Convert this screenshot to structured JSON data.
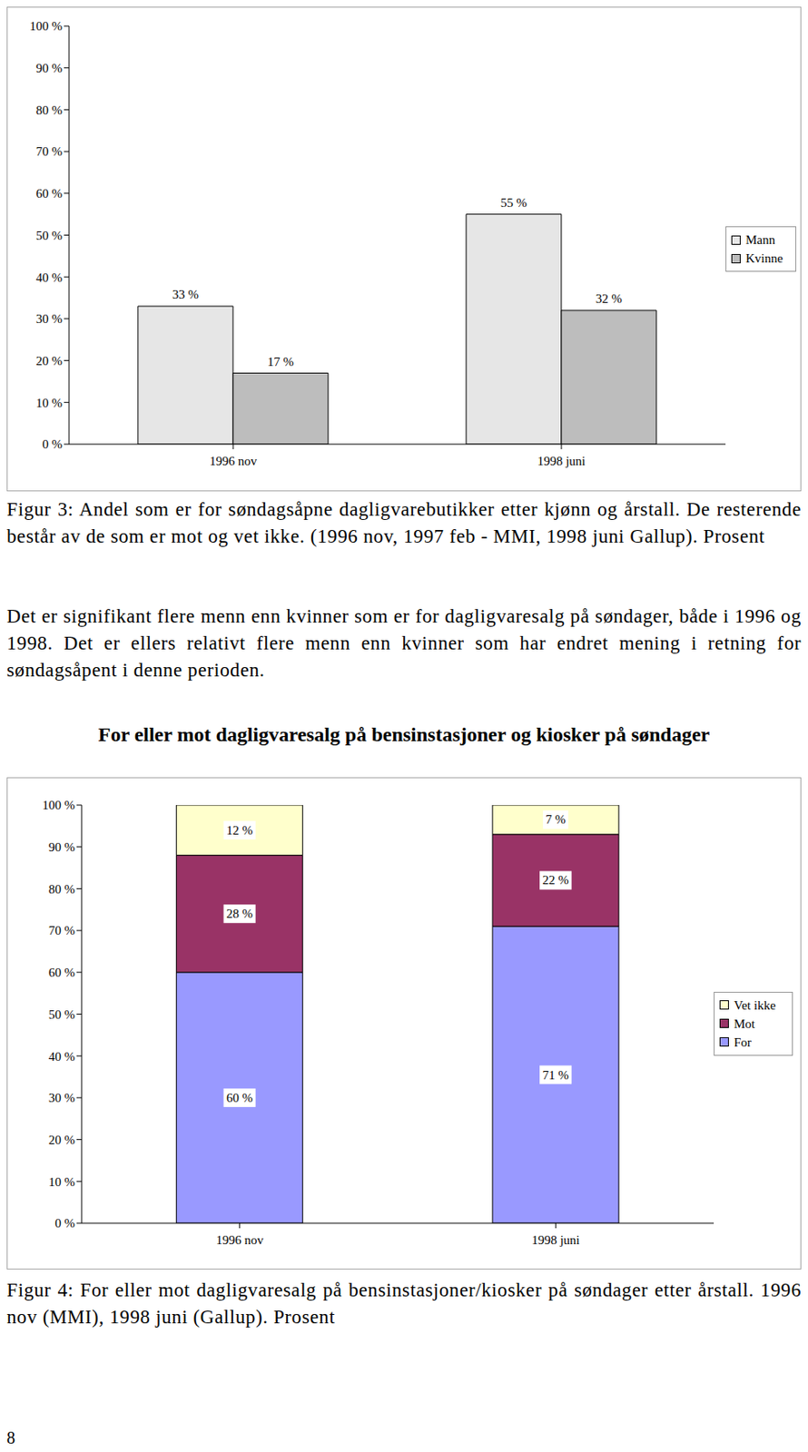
{
  "chart_data": [
    {
      "type": "bar",
      "categories": [
        "1996 nov",
        "1998 juni"
      ],
      "series": [
        {
          "name": "Mann",
          "color": "#e6e6e6",
          "values": [
            33,
            55
          ],
          "value_labels": [
            "33 %",
            "55 %"
          ]
        },
        {
          "name": "Kvinne",
          "color": "#bdbdbd",
          "values": [
            17,
            32
          ],
          "value_labels": [
            "17 %",
            "32 %"
          ]
        }
      ],
      "ylim": [
        0,
        100
      ],
      "yticks": [
        {
          "value": 0,
          "label": "0 %"
        },
        {
          "value": 10,
          "label": "10 %"
        },
        {
          "value": 20,
          "label": "20 %"
        },
        {
          "value": 30,
          "label": "30 %"
        },
        {
          "value": 40,
          "label": "40 %"
        },
        {
          "value": 50,
          "label": "50 %"
        },
        {
          "value": 60,
          "label": "60 %"
        },
        {
          "value": 70,
          "label": "70 %"
        },
        {
          "value": 80,
          "label": "80 %"
        },
        {
          "value": 90,
          "label": "90 %"
        },
        {
          "value": 100,
          "label": "100 %"
        }
      ],
      "grid": false,
      "legend": "right",
      "data_labels": true,
      "stacked": false
    },
    {
      "type": "bar",
      "categories": [
        "1996 nov",
        "1998 juni"
      ],
      "series": [
        {
          "name": "For",
          "color": "#9999ff",
          "values": [
            60,
            71
          ],
          "value_labels": [
            "60 %",
            "71 %"
          ]
        },
        {
          "name": "Mot",
          "color": "#993366",
          "values": [
            28,
            22
          ],
          "value_labels": [
            "28 %",
            "22 %"
          ]
        },
        {
          "name": "Vet ikke",
          "color": "#ffffcc",
          "values": [
            12,
            7
          ],
          "value_labels": [
            "12 %",
            "7 %"
          ]
        }
      ],
      "ylim": [
        0,
        100
      ],
      "yticks": [
        {
          "value": 0,
          "label": "0 %"
        },
        {
          "value": 10,
          "label": "10 %"
        },
        {
          "value": 20,
          "label": "20 %"
        },
        {
          "value": 30,
          "label": "30 %"
        },
        {
          "value": 40,
          "label": "40 %"
        },
        {
          "value": 50,
          "label": "50 %"
        },
        {
          "value": 60,
          "label": "60 %"
        },
        {
          "value": 70,
          "label": "70 %"
        },
        {
          "value": 80,
          "label": "80 %"
        },
        {
          "value": 90,
          "label": "90 %"
        },
        {
          "value": 100,
          "label": "100 %"
        }
      ],
      "grid": false,
      "legend": "right",
      "data_labels": true,
      "stacked": true
    }
  ],
  "document": {
    "figure3_caption": "Figur 3: Andel som er for søndagsåpne dagligvarebutikker etter kjønn og årstall. De resterende består av de som er mot og vet ikke. (1996 nov, 1997 feb - MMI, 1998 juni Gallup). Prosent",
    "paragraph": "Det er signifikant flere menn enn kvinner som er for dagligvaresalg på søndager, både i 1996 og 1998. Det er ellers relativt flere menn enn kvinner som har endret mening i retning for søndagsåpent i denne perioden.",
    "heading": "For eller mot dagligvaresalg på bensinstasjoner og kiosker på søndager",
    "figure4_caption": "Figur 4: For eller mot dagligvaresalg på bensinstasjoner/kiosker på søndager etter årstall. 1996 nov (MMI), 1998 juni (Gallup). Prosent",
    "page_number": "8"
  }
}
